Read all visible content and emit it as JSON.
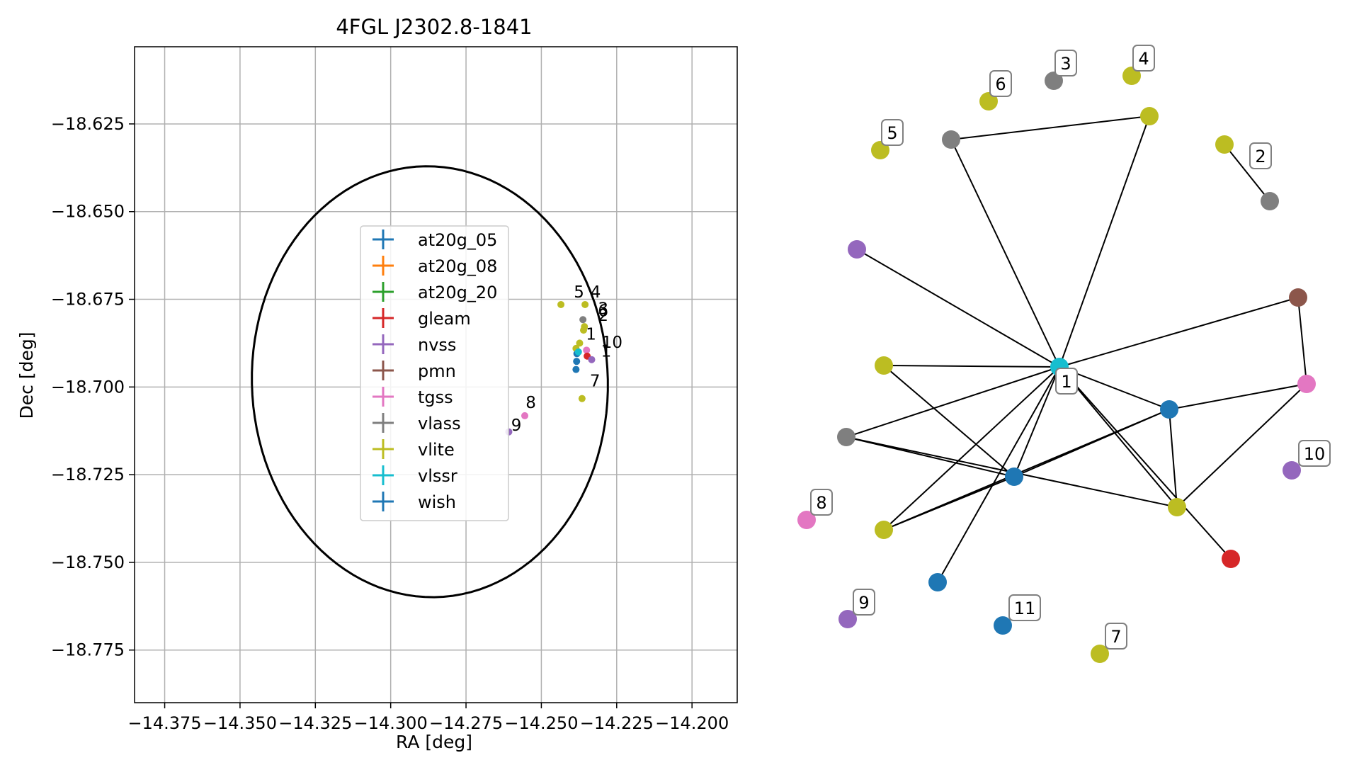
{
  "chart_data": [
    {
      "type": "scatter",
      "title": "4FGL J2302.8-1841",
      "xlabel": "RA [deg]",
      "ylabel": "Dec [deg]",
      "xlim": [
        -14.385,
        -14.185
      ],
      "ylim": [
        -18.79,
        -18.603
      ],
      "x_ticks": [
        -14.375,
        -14.35,
        -14.325,
        -14.3,
        -14.275,
        -14.25,
        -14.225,
        -14.2
      ],
      "x_tick_labels": [
        "−14.375",
        "−14.350",
        "−14.325",
        "−14.300",
        "−14.275",
        "−14.250",
        "−14.225",
        "−14.200"
      ],
      "y_ticks": [
        -18.625,
        -18.65,
        -18.675,
        -18.7,
        -18.725,
        -18.75,
        -18.775
      ],
      "y_tick_labels": [
        "−18.625",
        "−18.650",
        "−18.675",
        "−18.700",
        "−18.725",
        "−18.750",
        "−18.775"
      ],
      "grid": true,
      "legend_position": "center",
      "error_ellipse": {
        "center": [
          -14.287,
          -18.6985
        ],
        "semi_axis_ra": 0.059,
        "semi_axis_dec": 0.0615,
        "rotation_deg": 10
      },
      "series": [
        {
          "name": "at20g_05",
          "color": "#1f77b4"
        },
        {
          "name": "at20g_08",
          "color": "#ff7f0e"
        },
        {
          "name": "at20g_20",
          "color": "#2ca02c"
        },
        {
          "name": "gleam",
          "color": "#d62728"
        },
        {
          "name": "nvss",
          "color": "#9467bd"
        },
        {
          "name": "pmn",
          "color": "#8c564b"
        },
        {
          "name": "tgss",
          "color": "#e377c2"
        },
        {
          "name": "vlass",
          "color": "#7f7f7f"
        },
        {
          "name": "vlite",
          "color": "#bcbd22"
        },
        {
          "name": "vlssr",
          "color": "#17becf"
        },
        {
          "name": "wish",
          "color": "#1f77b4"
        }
      ],
      "points": [
        {
          "series": "vlite",
          "x": -14.2435,
          "y": -18.6765
        },
        {
          "series": "vlite",
          "x": -14.2355,
          "y": -18.6765
        },
        {
          "series": "vlass",
          "x": -14.2362,
          "y": -18.6808
        },
        {
          "series": "vlite",
          "x": -14.2357,
          "y": -18.6828
        },
        {
          "series": "vlite",
          "x": -14.236,
          "y": -18.6838
        },
        {
          "series": "vlite",
          "x": -14.2373,
          "y": -18.6875
        },
        {
          "series": "vlite",
          "x": -14.2385,
          "y": -18.689
        },
        {
          "series": "wish",
          "x": -14.2382,
          "y": -18.6905
        },
        {
          "series": "vlssr",
          "x": -14.2377,
          "y": -18.69
        },
        {
          "series": "tgss",
          "x": -14.235,
          "y": -18.6895
        },
        {
          "series": "gleam",
          "x": -14.2348,
          "y": -18.6912
        },
        {
          "series": "nvss",
          "x": -14.2333,
          "y": -18.6922
        },
        {
          "series": "at20g_05",
          "x": -14.2383,
          "y": -18.6927
        },
        {
          "series": "at20g_05",
          "x": -14.2385,
          "y": -18.695
        },
        {
          "series": "vlite",
          "x": -14.2365,
          "y": -18.7033
        },
        {
          "series": "tgss",
          "x": -14.2555,
          "y": -18.7082
        },
        {
          "series": "nvss",
          "x": -14.2608,
          "y": -18.7128
        }
      ],
      "point_labels": [
        {
          "text": "5",
          "x": -14.2375,
          "y": -18.6745
        },
        {
          "text": "4",
          "x": -14.232,
          "y": -18.6745
        },
        {
          "text": "3",
          "x": -14.2295,
          "y": -18.6792
        },
        {
          "text": "6",
          "x": -14.2295,
          "y": -18.6798
        },
        {
          "text": "2",
          "x": -14.2295,
          "y": -18.6812
        },
        {
          "text": "1",
          "x": -14.2335,
          "y": -18.6865
        },
        {
          "text": "10",
          "x": -14.2265,
          "y": -18.6888
        },
        {
          "text": "1",
          "x": -14.2285,
          "y": -18.6913
        },
        {
          "text": "7",
          "x": -14.2322,
          "y": -18.6998
        },
        {
          "text": "8",
          "x": -14.2535,
          "y": -18.706
        },
        {
          "text": "9",
          "x": -14.2583,
          "y": -18.7125
        }
      ]
    },
    {
      "type": "graph",
      "nodes": [
        {
          "id": 0,
          "color": "#bcbd22",
          "label": "4"
        },
        {
          "id": 1,
          "color": "#7f7f7f",
          "label": "3"
        },
        {
          "id": 2,
          "color": "#bcbd22",
          "label": "6"
        },
        {
          "id": 3,
          "color": "#bcbd22",
          "label": "5"
        },
        {
          "id": 4,
          "color": "#bcbd22",
          "label": ""
        },
        {
          "id": 5,
          "color": "#7f7f7f",
          "label": ""
        },
        {
          "id": 6,
          "color": "#bcbd22",
          "label": ""
        },
        {
          "id": 7,
          "color": "#7f7f7f",
          "label": "2"
        },
        {
          "id": 8,
          "color": "#9467bd",
          "label": ""
        },
        {
          "id": 9,
          "color": "#8c564b",
          "label": ""
        },
        {
          "id": 10,
          "color": "#17becf",
          "label": "1"
        },
        {
          "id": 11,
          "color": "#bcbd22",
          "label": ""
        },
        {
          "id": 12,
          "color": "#e377c2",
          "label": ""
        },
        {
          "id": 13,
          "color": "#1f77b4",
          "label": ""
        },
        {
          "id": 14,
          "color": "#7f7f7f",
          "label": ""
        },
        {
          "id": 15,
          "color": "#9467bd",
          "label": "10"
        },
        {
          "id": 16,
          "color": "#1f77b4",
          "label": ""
        },
        {
          "id": 17,
          "color": "#bcbd22",
          "label": ""
        },
        {
          "id": 18,
          "color": "#bcbd22",
          "label": ""
        },
        {
          "id": 19,
          "color": "#e377c2",
          "label": "8"
        },
        {
          "id": 20,
          "color": "#d62728",
          "label": ""
        },
        {
          "id": 21,
          "color": "#1f77b4",
          "label": ""
        },
        {
          "id": 22,
          "color": "#9467bd",
          "label": "9"
        },
        {
          "id": 23,
          "color": "#1f77b4",
          "label": "11"
        },
        {
          "id": 24,
          "color": "#bcbd22",
          "label": "7"
        }
      ],
      "edges": [
        [
          5,
          4
        ],
        [
          5,
          10
        ],
        [
          4,
          10
        ],
        [
          6,
          7
        ],
        [
          8,
          10
        ],
        [
          9,
          10
        ],
        [
          9,
          12
        ],
        [
          10,
          11
        ],
        [
          10,
          14
        ],
        [
          10,
          13
        ],
        [
          10,
          16
        ],
        [
          10,
          17
        ],
        [
          10,
          18
        ],
        [
          10,
          20
        ],
        [
          10,
          21
        ],
        [
          11,
          16
        ],
        [
          14,
          16
        ],
        [
          14,
          17
        ],
        [
          16,
          13
        ],
        [
          16,
          18
        ],
        [
          13,
          12
        ],
        [
          13,
          17
        ],
        [
          12,
          17
        ],
        [
          18,
          13
        ]
      ]
    }
  ]
}
